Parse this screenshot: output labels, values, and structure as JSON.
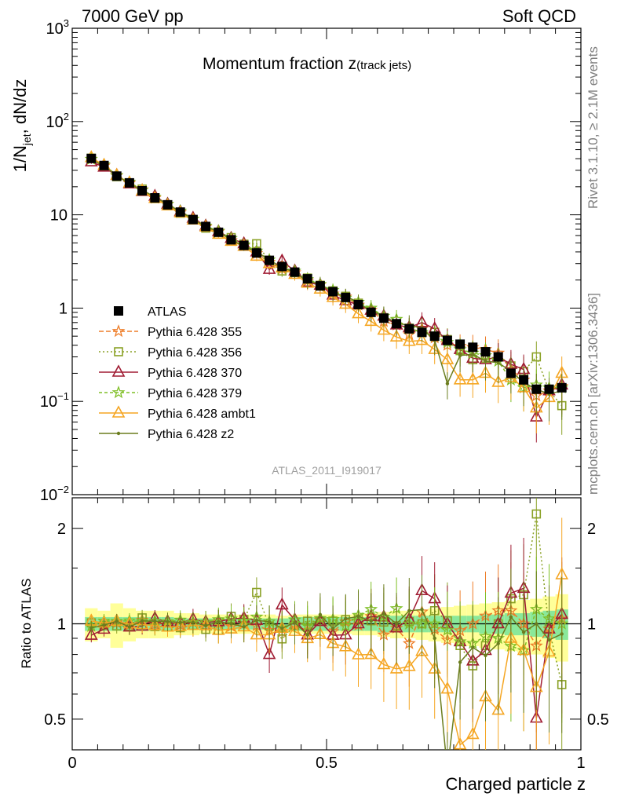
{
  "header": {
    "left": "7000 GeV pp",
    "right": "Soft QCD"
  },
  "side_labels": {
    "rivet": "Rivet 3.1.10, ≥ 2.1M events",
    "mcplots": "mcplots.cern.ch [arXiv:1306.3436]"
  },
  "analysis_id": "ATLAS_2011_I919017",
  "chart_data": [
    {
      "type": "scatter",
      "title": "Momentum fraction z(track jets)",
      "ylabel": "1/N_jet dN/dz",
      "yscale": "log",
      "ylim": [
        0.01,
        1000
      ],
      "xlim": [
        0,
        1
      ],
      "yticks": [
        "10^-2",
        "10^-1",
        "1",
        "10",
        "10^2",
        "10^3"
      ],
      "legend_position": "center-left",
      "x": [
        0.0375,
        0.0625,
        0.0875,
        0.1125,
        0.1375,
        0.1625,
        0.1875,
        0.2125,
        0.2375,
        0.2625,
        0.2875,
        0.3125,
        0.3375,
        0.3625,
        0.3875,
        0.4125,
        0.4375,
        0.4625,
        0.4875,
        0.5125,
        0.5375,
        0.5625,
        0.5875,
        0.6125,
        0.6375,
        0.6625,
        0.6875,
        0.7125,
        0.7375,
        0.7625,
        0.7875,
        0.8125,
        0.8375,
        0.8625,
        0.8875,
        0.9125,
        0.9375,
        0.9625
      ],
      "series": [
        {
          "name": "ATLAS",
          "color": "#000000",
          "marker": "square",
          "values": [
            40.2,
            33.8,
            26.0,
            22.0,
            18.1,
            15.2,
            12.8,
            10.7,
            8.9,
            7.5,
            6.5,
            5.4,
            4.7,
            3.9,
            3.25,
            2.79,
            2.43,
            2.06,
            1.73,
            1.5,
            1.3,
            1.09,
            0.9,
            0.78,
            0.68,
            0.6,
            0.55,
            0.5,
            0.45,
            0.41,
            0.38,
            0.34,
            0.3,
            0.2,
            0.17,
            0.135,
            0.135,
            0.14
          ]
        },
        {
          "name": "Pythia 6.428 355",
          "color": "#ee7d28",
          "marker": "star",
          "dash": "6,3",
          "values": [
            39.5,
            33.5,
            26.2,
            21.8,
            18.6,
            15.1,
            13.0,
            10.6,
            9.0,
            7.4,
            6.6,
            5.3,
            4.7,
            3.85,
            3.1,
            2.63,
            2.4,
            1.96,
            1.78,
            1.42,
            1.32,
            1.08,
            0.95,
            0.72,
            0.66,
            0.52,
            0.6,
            0.48,
            0.4,
            0.39,
            0.38,
            0.36,
            0.33,
            0.22,
            0.17,
            0.115,
            0.13,
            0.145
          ]
        },
        {
          "name": "Pythia 6.428 356",
          "color": "#8aa126",
          "marker": "open-square",
          "dash": "2,3",
          "values": [
            40.5,
            33.4,
            25.6,
            21.6,
            18.9,
            14.9,
            12.5,
            10.4,
            8.8,
            7.2,
            6.2,
            5.7,
            4.85,
            4.9,
            3.2,
            2.5,
            2.4,
            2.1,
            1.76,
            1.53,
            1.34,
            1.13,
            0.92,
            0.79,
            0.67,
            0.61,
            0.55,
            0.55,
            0.46,
            0.35,
            0.28,
            0.29,
            0.3,
            0.24,
            0.21,
            0.3,
            0.13,
            0.09
          ]
        },
        {
          "name": "Pythia 6.428 370",
          "color": "#a01c33",
          "marker": "open-triangle",
          "dash": "",
          "values": [
            37.0,
            32.5,
            26.5,
            21.5,
            17.8,
            15.8,
            13.0,
            10.8,
            9.2,
            7.6,
            6.6,
            5.6,
            4.9,
            4.0,
            2.6,
            3.2,
            2.5,
            1.9,
            1.76,
            1.38,
            1.2,
            1.09,
            0.95,
            0.82,
            0.66,
            0.62,
            0.7,
            0.6,
            0.45,
            0.36,
            0.29,
            0.28,
            0.3,
            0.25,
            0.22,
            0.068,
            0.13,
            0.15
          ]
        },
        {
          "name": "Pythia 6.428 379",
          "color": "#7fbf26",
          "marker": "star",
          "dash": "4,3",
          "values": [
            39.5,
            34.5,
            26.5,
            22.5,
            18.4,
            15.5,
            13.0,
            11.0,
            9.0,
            7.6,
            6.7,
            5.6,
            4.8,
            4.1,
            3.3,
            2.7,
            2.5,
            2.03,
            1.8,
            1.55,
            1.28,
            1.16,
            1.0,
            0.82,
            0.76,
            0.6,
            0.55,
            0.5,
            0.43,
            0.36,
            0.33,
            0.31,
            0.27,
            0.17,
            0.14,
            0.15,
            0.14,
            0.14
          ]
        },
        {
          "name": "Pythia 6.428 ambt1",
          "color": "#f5a623",
          "marker": "open-triangle",
          "dash": "",
          "values": [
            41.0,
            34.0,
            26.5,
            22.0,
            18.0,
            15.0,
            12.5,
            10.5,
            8.8,
            7.4,
            6.2,
            5.2,
            4.6,
            3.6,
            3.0,
            2.7,
            2.3,
            1.85,
            1.6,
            1.3,
            1.1,
            0.87,
            0.72,
            0.58,
            0.49,
            0.44,
            0.45,
            0.36,
            0.28,
            0.17,
            0.17,
            0.2,
            0.16,
            0.18,
            0.14,
            0.085,
            0.11,
            0.2
          ]
        },
        {
          "name": "Pythia 6.428 z2",
          "color": "#6b7d1e",
          "marker": "dot",
          "dash": "",
          "values": [
            39.0,
            33.5,
            26.5,
            21.5,
            18.5,
            15.5,
            13.0,
            10.8,
            9.0,
            7.4,
            6.6,
            5.4,
            4.6,
            4.0,
            3.3,
            2.7,
            2.45,
            1.9,
            1.85,
            1.45,
            1.35,
            1.15,
            0.92,
            0.84,
            0.68,
            0.66,
            0.61,
            0.45,
            0.155,
            0.31,
            0.32,
            0.27,
            0.26,
            0.21,
            0.16,
            0.135,
            0.12,
            0.13
          ]
        }
      ]
    },
    {
      "type": "scatter",
      "ylabel": "Ratio to ATLAS",
      "xlabel": "Charged particle z",
      "xlim": [
        0,
        1
      ],
      "ylim": [
        0.4,
        2.5
      ],
      "yscale": "log",
      "yticks": [
        "0.5",
        "1",
        "2"
      ],
      "xticks": [
        "0",
        "0.5",
        "1"
      ],
      "uncertainty_bands": {
        "inner_color": "#8ae89a",
        "outer_color": "#ffff99",
        "inner_halfwidth": [
          0.05,
          0.05,
          0.05,
          0.05,
          0.05,
          0.05,
          0.05,
          0.04,
          0.04,
          0.04,
          0.04,
          0.04,
          0.04,
          0.04,
          0.04,
          0.04,
          0.05,
          0.05,
          0.05,
          0.05,
          0.05,
          0.05,
          0.05,
          0.06,
          0.06,
          0.06,
          0.06,
          0.06,
          0.06,
          0.06,
          0.06,
          0.07,
          0.07,
          0.08,
          0.08,
          0.09,
          0.1,
          0.11
        ],
        "outer_halfwidth": [
          0.12,
          0.1,
          0.16,
          0.12,
          0.1,
          0.1,
          0.1,
          0.08,
          0.08,
          0.07,
          0.07,
          0.07,
          0.07,
          0.07,
          0.07,
          0.06,
          0.07,
          0.07,
          0.07,
          0.07,
          0.07,
          0.08,
          0.08,
          0.09,
          0.1,
          0.1,
          0.11,
          0.12,
          0.13,
          0.14,
          0.15,
          0.16,
          0.17,
          0.18,
          0.19,
          0.2,
          0.22,
          0.24
        ]
      }
    }
  ]
}
